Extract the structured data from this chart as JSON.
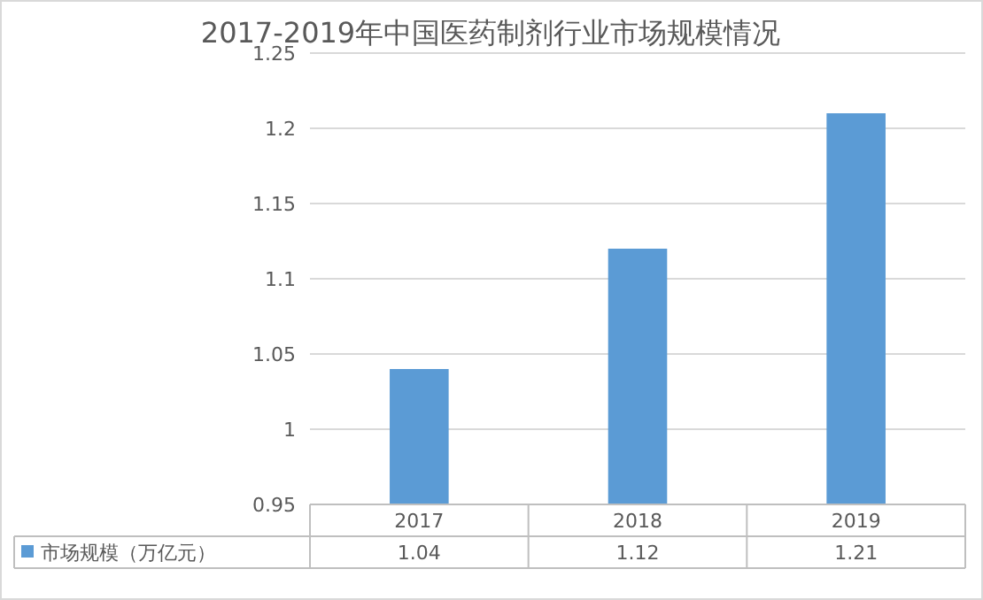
{
  "chart_data": {
    "type": "bar",
    "title": "2017-2019年中国医药制剂行业市场规模情况",
    "categories": [
      "2017",
      "2018",
      "2019"
    ],
    "series": [
      {
        "name": "市场规模（万亿元）",
        "color": "#5b9bd5",
        "values": [
          1.04,
          1.12,
          1.21
        ]
      }
    ],
    "ylim": [
      0.95,
      1.25
    ],
    "yticks": [
      0.95,
      1,
      1.05,
      1.1,
      1.15,
      1.2,
      1.25
    ],
    "grid": "y",
    "data_labels": true,
    "legend": "bottom"
  }
}
